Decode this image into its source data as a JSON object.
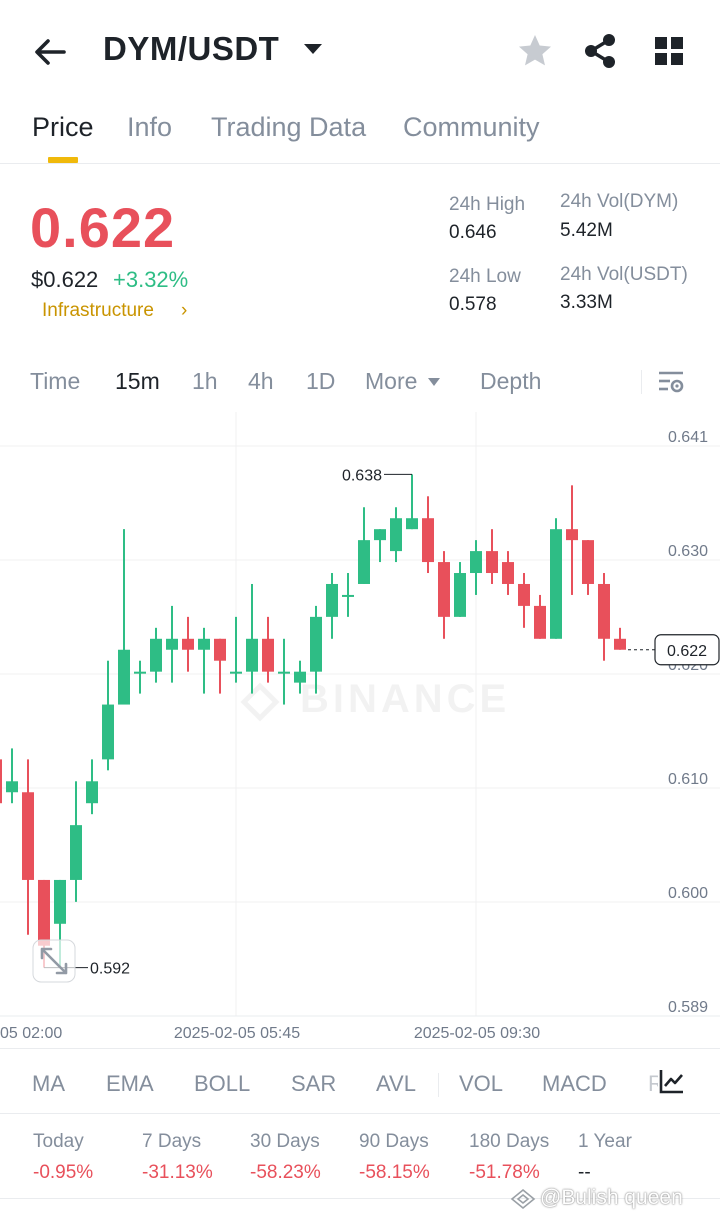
{
  "header": {
    "pair": "DYM/USDT",
    "icons": {
      "back": "back-arrow-icon",
      "caret": "caret-down-icon",
      "favorite": "star-icon",
      "share": "share-icon",
      "menu": "grid-icon"
    }
  },
  "tabs": [
    {
      "label": "Price",
      "active": true
    },
    {
      "label": "Info",
      "active": false
    },
    {
      "label": "Trading Data",
      "active": false
    },
    {
      "label": "Community",
      "active": false
    }
  ],
  "price": {
    "last": "0.622",
    "usd": "$0.622",
    "change": "+3.32%",
    "tag": "Infrastructure",
    "tag_arrow": "›"
  },
  "stats": {
    "high_label": "24h High",
    "high_value": "0.646",
    "low_label": "24h Low",
    "low_value": "0.578",
    "vol_base_label": "24h Vol(DYM)",
    "vol_base_value": "5.42M",
    "vol_quote_label": "24h Vol(USDT)",
    "vol_quote_value": "3.33M"
  },
  "intervals": [
    {
      "label": "Time",
      "active": false
    },
    {
      "label": "15m",
      "active": true
    },
    {
      "label": "1h",
      "active": false
    },
    {
      "label": "4h",
      "active": false
    },
    {
      "label": "1D",
      "active": false
    },
    {
      "label": "More",
      "active": false
    },
    {
      "label": "Depth",
      "active": false
    }
  ],
  "chart_data": {
    "type": "candlestick",
    "y_ticks": [
      "0.641",
      "0.630",
      "0.620",
      "0.610",
      "0.600",
      "0.589"
    ],
    "ylim": [
      0.589,
      0.641
    ],
    "x_ticks": [
      "05 02:00",
      "2025-02-05 05:45",
      "2025-02-05 09:30"
    ],
    "last_price_label": "0.622",
    "max_label": "0.638",
    "min_label": "0.592",
    "watermark": "BINANCE",
    "colors": {
      "up": "#2ebd85",
      "down": "#e8505b"
    },
    "candles": [
      {
        "o": 0.6115,
        "h": 0.6115,
        "l": 0.6075,
        "c": 0.6075
      },
      {
        "o": 0.6085,
        "h": 0.6125,
        "l": 0.6075,
        "c": 0.6095
      },
      {
        "o": 0.6085,
        "h": 0.6115,
        "l": 0.5955,
        "c": 0.6005
      },
      {
        "o": 0.6005,
        "h": 0.6005,
        "l": 0.5925,
        "c": 0.5945
      },
      {
        "o": 0.5965,
        "h": 0.6005,
        "l": 0.5925,
        "c": 0.6005
      },
      {
        "o": 0.6005,
        "h": 0.6095,
        "l": 0.5985,
        "c": 0.6055
      },
      {
        "o": 0.6075,
        "h": 0.6115,
        "l": 0.6065,
        "c": 0.6095
      },
      {
        "o": 0.6115,
        "h": 0.6205,
        "l": 0.6105,
        "c": 0.6165
      },
      {
        "o": 0.6165,
        "h": 0.6325,
        "l": 0.6165,
        "c": 0.6215
      },
      {
        "o": 0.6195,
        "h": 0.6205,
        "l": 0.6175,
        "c": 0.6195
      },
      {
        "o": 0.6195,
        "h": 0.6235,
        "l": 0.6185,
        "c": 0.6225
      },
      {
        "o": 0.6215,
        "h": 0.6255,
        "l": 0.6185,
        "c": 0.6225
      },
      {
        "o": 0.6225,
        "h": 0.6245,
        "l": 0.6195,
        "c": 0.6215
      },
      {
        "o": 0.6215,
        "h": 0.6235,
        "l": 0.6175,
        "c": 0.6225
      },
      {
        "o": 0.6225,
        "h": 0.6225,
        "l": 0.6175,
        "c": 0.6205
      },
      {
        "o": 0.6195,
        "h": 0.6245,
        "l": 0.6185,
        "c": 0.6195
      },
      {
        "o": 0.6195,
        "h": 0.6275,
        "l": 0.6175,
        "c": 0.6225
      },
      {
        "o": 0.6225,
        "h": 0.6245,
        "l": 0.6185,
        "c": 0.6195
      },
      {
        "o": 0.6195,
        "h": 0.6225,
        "l": 0.6165,
        "c": 0.6195
      },
      {
        "o": 0.6185,
        "h": 0.6205,
        "l": 0.6175,
        "c": 0.6195
      },
      {
        "o": 0.6195,
        "h": 0.6255,
        "l": 0.6175,
        "c": 0.6245
      },
      {
        "o": 0.6245,
        "h": 0.6285,
        "l": 0.6225,
        "c": 0.6275
      },
      {
        "o": 0.6265,
        "h": 0.6285,
        "l": 0.6245,
        "c": 0.6265
      },
      {
        "o": 0.6275,
        "h": 0.6345,
        "l": 0.6275,
        "c": 0.6315
      },
      {
        "o": 0.6315,
        "h": 0.6325,
        "l": 0.6295,
        "c": 0.6325
      },
      {
        "o": 0.6305,
        "h": 0.6345,
        "l": 0.6295,
        "c": 0.6335
      },
      {
        "o": 0.6325,
        "h": 0.6375,
        "l": 0.6325,
        "c": 0.6335
      },
      {
        "o": 0.6335,
        "h": 0.6355,
        "l": 0.6285,
        "c": 0.6295
      },
      {
        "o": 0.6295,
        "h": 0.6305,
        "l": 0.6225,
        "c": 0.6245
      },
      {
        "o": 0.6245,
        "h": 0.6295,
        "l": 0.6245,
        "c": 0.6285
      },
      {
        "o": 0.6285,
        "h": 0.6315,
        "l": 0.6265,
        "c": 0.6305
      },
      {
        "o": 0.6305,
        "h": 0.6325,
        "l": 0.6275,
        "c": 0.6285
      },
      {
        "o": 0.6295,
        "h": 0.6305,
        "l": 0.6265,
        "c": 0.6275
      },
      {
        "o": 0.6275,
        "h": 0.6285,
        "l": 0.6235,
        "c": 0.6255
      },
      {
        "o": 0.6255,
        "h": 0.6265,
        "l": 0.6225,
        "c": 0.6225
      },
      {
        "o": 0.6225,
        "h": 0.6335,
        "l": 0.6225,
        "c": 0.6325
      },
      {
        "o": 0.6325,
        "h": 0.6365,
        "l": 0.6265,
        "c": 0.6315
      },
      {
        "o": 0.6315,
        "h": 0.6315,
        "l": 0.6265,
        "c": 0.6275
      },
      {
        "o": 0.6275,
        "h": 0.6285,
        "l": 0.6205,
        "c": 0.6225
      },
      {
        "o": 0.6225,
        "h": 0.6235,
        "l": 0.6215,
        "c": 0.6215
      }
    ]
  },
  "indicators": [
    "MA",
    "EMA",
    "BOLL",
    "SAR",
    "AVL",
    "VOL",
    "MACD",
    "R"
  ],
  "performance": [
    {
      "label": "Today",
      "value": "-0.95%"
    },
    {
      "label": "7 Days",
      "value": "-31.13%"
    },
    {
      "label": "30 Days",
      "value": "-58.23%"
    },
    {
      "label": "90 Days",
      "value": "-58.15%"
    },
    {
      "label": "180 Days",
      "value": "-51.78%"
    },
    {
      "label": "1 Year",
      "value": "--"
    }
  ],
  "credit": "@Bulish queen"
}
